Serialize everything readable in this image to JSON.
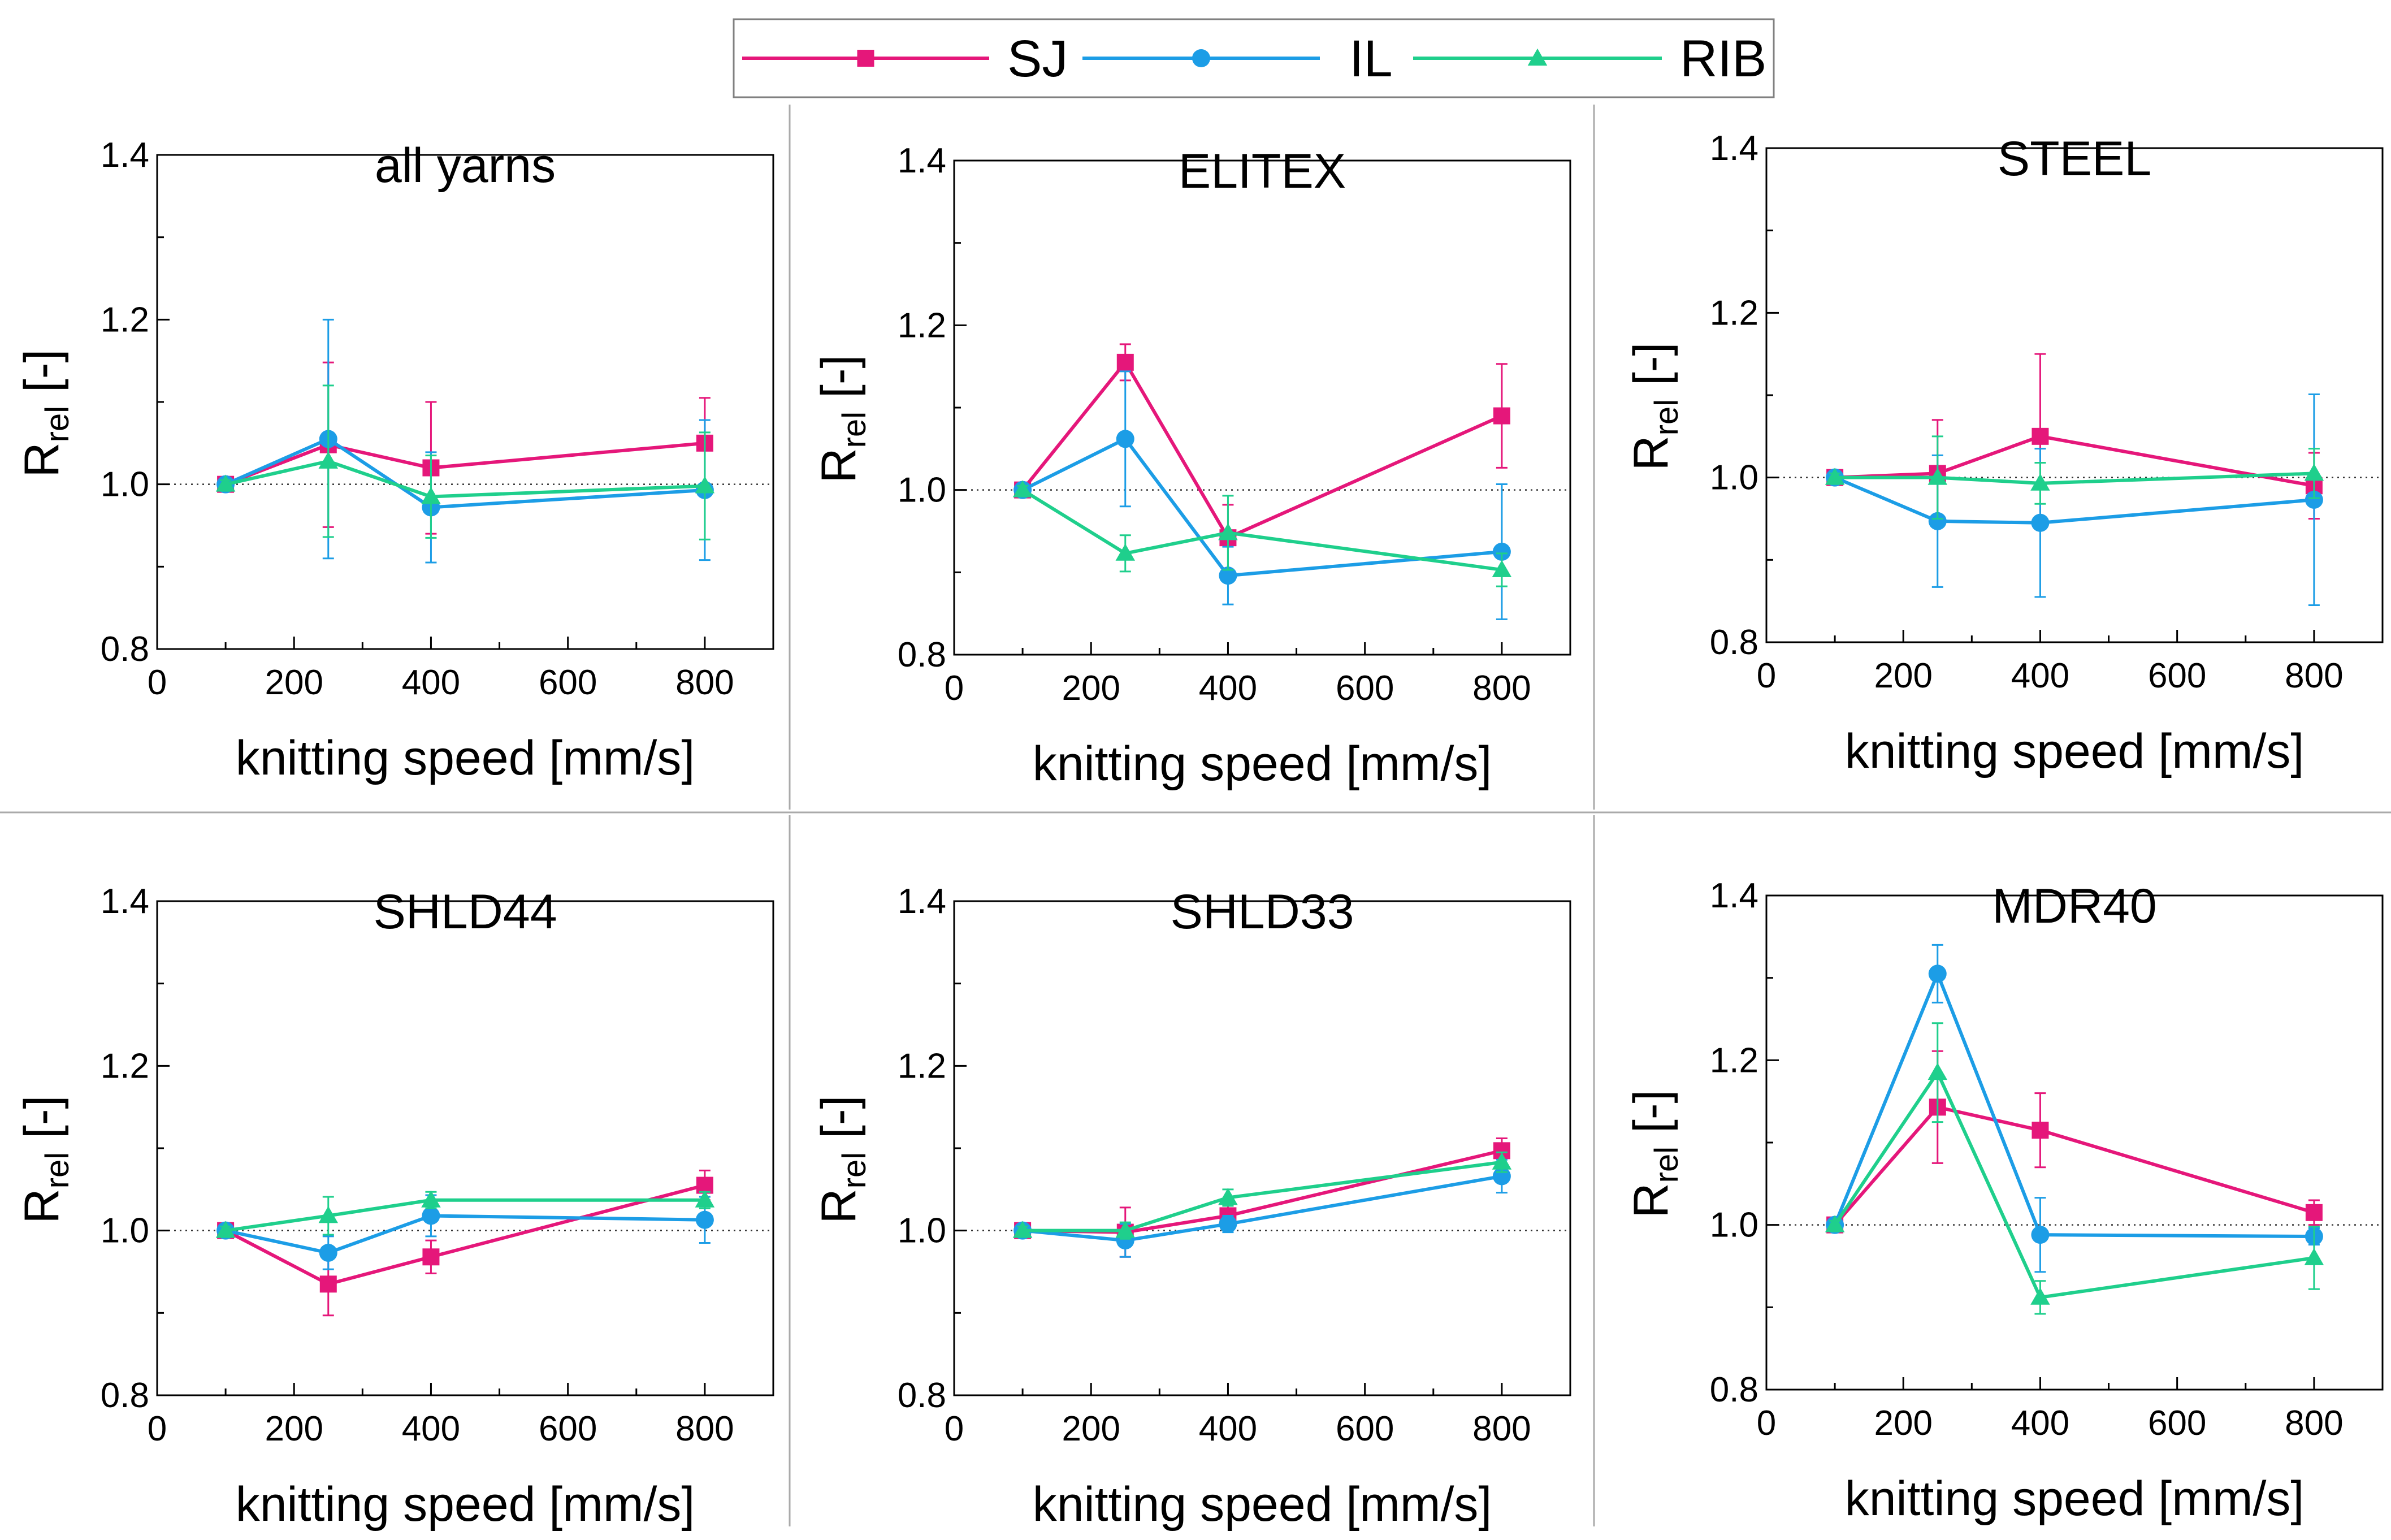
{
  "legend": [
    {
      "key": "SJ",
      "label": "SJ",
      "color": "#e5177a",
      "marker": "square"
    },
    {
      "key": "IL",
      "label": "IL",
      "color": "#1c9de6",
      "marker": "circle"
    },
    {
      "key": "RIB",
      "label": "RIB",
      "color": "#1fcf8c",
      "marker": "triangle"
    }
  ],
  "chart_data": [
    {
      "type": "line",
      "title": "all yarns",
      "xlabel": "knitting speed [mm/s]",
      "ylabel_main": "R",
      "ylabel_sub": "rel",
      "ylabel_unit": " [-]",
      "xlim": [
        0,
        900
      ],
      "ylim": [
        0.8,
        1.4
      ],
      "xticks": [
        "0",
        "200",
        "400",
        "600",
        "800"
      ],
      "yticks": [
        "0.8",
        "1.0",
        "1.2",
        "1.4"
      ],
      "reference_line": 1.0,
      "x": [
        100,
        250,
        400,
        800
      ],
      "series": [
        {
          "name": "SJ",
          "values": [
            1.0,
            1.048,
            1.02,
            1.05
          ],
          "errors": [
            0.005,
            0.1,
            0.08,
            0.055
          ]
        },
        {
          "name": "IL",
          "values": [
            1.0,
            1.055,
            0.972,
            0.993
          ],
          "errors": [
            0.005,
            0.145,
            0.067,
            0.085
          ]
        },
        {
          "name": "RIB",
          "values": [
            1.0,
            1.028,
            0.985,
            0.998
          ],
          "errors": [
            0.005,
            0.092,
            0.05,
            0.065
          ]
        }
      ]
    },
    {
      "type": "line",
      "title": "ELITEX",
      "xlabel": "knitting speed [mm/s]",
      "ylabel_main": "R",
      "ylabel_sub": "rel",
      "ylabel_unit": " [-]",
      "xlim": [
        0,
        900
      ],
      "ylim": [
        0.8,
        1.4
      ],
      "xticks": [
        "0",
        "200",
        "400",
        "600",
        "800"
      ],
      "yticks": [
        "0.8",
        "1.0",
        "1.2",
        "1.4"
      ],
      "reference_line": 1.0,
      "x": [
        100,
        250,
        400,
        800
      ],
      "series": [
        {
          "name": "SJ",
          "values": [
            1.0,
            1.155,
            0.942,
            1.09
          ],
          "errors": [
            0.005,
            0.022,
            0.04,
            0.063
          ]
        },
        {
          "name": "IL",
          "values": [
            1.0,
            1.062,
            0.896,
            0.925
          ],
          "errors": [
            0.005,
            0.082,
            0.035,
            0.082
          ]
        },
        {
          "name": "RIB",
          "values": [
            1.0,
            0.923,
            0.948,
            0.903
          ],
          "errors": [
            0.005,
            0.022,
            0.045,
            0.02
          ]
        }
      ]
    },
    {
      "type": "line",
      "title": "STEEL",
      "xlabel": "knitting speed [mm/s]",
      "ylabel_main": "R",
      "ylabel_sub": "rel",
      "ylabel_unit": " [-]",
      "xlim": [
        0,
        900
      ],
      "ylim": [
        0.8,
        1.4
      ],
      "xticks": [
        "0",
        "200",
        "400",
        "600",
        "800"
      ],
      "yticks": [
        "0.8",
        "1.0",
        "1.2",
        "1.4"
      ],
      "reference_line": 1.0,
      "x": [
        100,
        250,
        400,
        800
      ],
      "series": [
        {
          "name": "SJ",
          "values": [
            1.0,
            1.005,
            1.05,
            0.99
          ],
          "errors": [
            0.005,
            0.065,
            0.1,
            0.04
          ]
        },
        {
          "name": "IL",
          "values": [
            1.0,
            0.947,
            0.945,
            0.973
          ],
          "errors": [
            0.005,
            0.08,
            0.09,
            0.128
          ]
        },
        {
          "name": "RIB",
          "values": [
            1.0,
            1.0,
            0.993,
            1.005
          ],
          "errors": [
            0.005,
            0.05,
            0.025,
            0.03
          ]
        }
      ]
    },
    {
      "type": "line",
      "title": "SHLD44",
      "xlabel": "knitting speed [mm/s]",
      "ylabel_main": "R",
      "ylabel_sub": "rel",
      "ylabel_unit": " [-]",
      "xlim": [
        0,
        900
      ],
      "ylim": [
        0.8,
        1.4
      ],
      "xticks": [
        "0",
        "200",
        "400",
        "600",
        "800"
      ],
      "yticks": [
        "0.8",
        "1.0",
        "1.2",
        "1.4"
      ],
      "reference_line": 1.0,
      "x": [
        100,
        250,
        400,
        800
      ],
      "series": [
        {
          "name": "SJ",
          "values": [
            1.0,
            0.935,
            0.968,
            1.055
          ],
          "errors": [
            0.005,
            0.038,
            0.02,
            0.018
          ]
        },
        {
          "name": "IL",
          "values": [
            1.0,
            0.973,
            1.018,
            1.013
          ],
          "errors": [
            0.005,
            0.02,
            0.025,
            0.028
          ]
        },
        {
          "name": "RIB",
          "values": [
            1.0,
            1.018,
            1.037,
            1.037
          ],
          "errors": [
            0.005,
            0.023,
            0.01,
            0.01
          ]
        }
      ]
    },
    {
      "type": "line",
      "title": "SHLD33",
      "xlabel": "knitting speed [mm/s]",
      "ylabel_main": "R",
      "ylabel_sub": "rel",
      "ylabel_unit": " [-]",
      "xlim": [
        0,
        900
      ],
      "ylim": [
        0.8,
        1.4
      ],
      "xticks": [
        "0",
        "200",
        "400",
        "600",
        "800"
      ],
      "yticks": [
        "0.8",
        "1.0",
        "1.2",
        "1.4"
      ],
      "reference_line": 1.0,
      "x": [
        100,
        250,
        400,
        800
      ],
      "series": [
        {
          "name": "SJ",
          "values": [
            1.0,
            0.998,
            1.018,
            1.097
          ],
          "errors": [
            0.005,
            0.03,
            0.012,
            0.015
          ]
        },
        {
          "name": "IL",
          "values": [
            1.0,
            0.988,
            1.008,
            1.066
          ],
          "errors": [
            0.005,
            0.02,
            0.01,
            0.02
          ]
        },
        {
          "name": "RIB",
          "values": [
            1.0,
            1.0,
            1.04,
            1.083
          ],
          "errors": [
            0.005,
            0.01,
            0.01,
            0.012
          ]
        }
      ]
    },
    {
      "type": "line",
      "title": "MDR40",
      "xlabel": "knitting speed [mm/s]",
      "ylabel_main": "R",
      "ylabel_sub": "rel",
      "ylabel_unit": " [-]",
      "xlim": [
        0,
        900
      ],
      "ylim": [
        0.8,
        1.4
      ],
      "xticks": [
        "0",
        "200",
        "400",
        "600",
        "800"
      ],
      "yticks": [
        "0.8",
        "1.0",
        "1.2",
        "1.4"
      ],
      "reference_line": 1.0,
      "x": [
        100,
        250,
        400,
        800
      ],
      "series": [
        {
          "name": "SJ",
          "values": [
            1.0,
            1.143,
            1.115,
            1.015
          ],
          "errors": [
            0.005,
            0.068,
            0.045,
            0.015
          ]
        },
        {
          "name": "IL",
          "values": [
            1.0,
            1.305,
            0.988,
            0.986
          ],
          "errors": [
            0.005,
            0.035,
            0.045,
            0.01
          ]
        },
        {
          "name": "RIB",
          "values": [
            1.0,
            1.185,
            0.912,
            0.96
          ],
          "errors": [
            0.005,
            0.06,
            0.02,
            0.038
          ]
        }
      ]
    }
  ]
}
